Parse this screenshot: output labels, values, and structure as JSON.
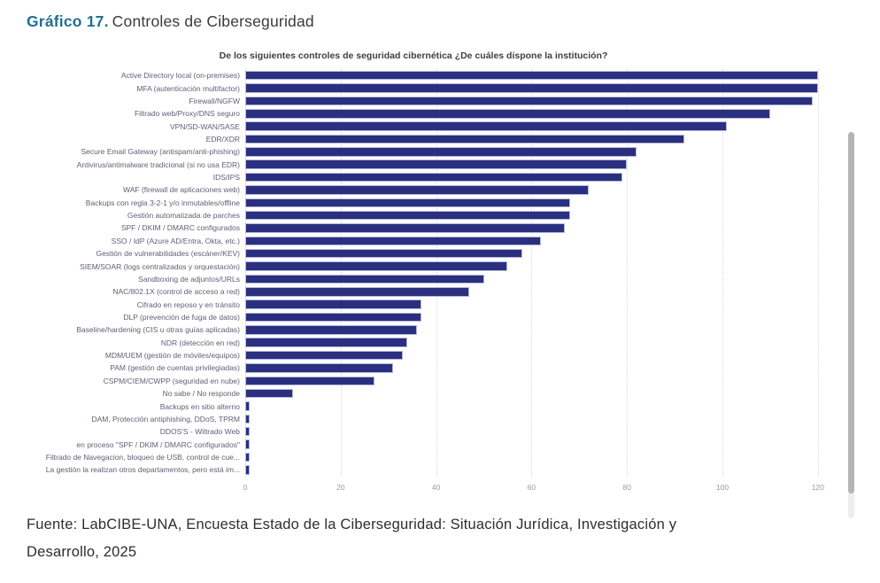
{
  "page": {
    "title_prefix": "Gráfico 17.",
    "title_text": "Controles de Ciberseguridad",
    "footer_lines": [
      "Fuente: LabCIBE-UNA, Encuesta Estado de la Ciberseguridad: Situación Jurídica, Investigación y",
      "Desarrollo, 2025"
    ]
  },
  "colors": {
    "title_accent": "#1f7092",
    "bar": "#2b2f80",
    "bar_border": "#b4bad8",
    "grid": "#d8d8d8",
    "tick_label": "#9a9a9a",
    "category_label": "#5f5f75",
    "scrollbar_thumb": "#b5b5b5",
    "scrollbar_track": "#ededed"
  },
  "chart_data": {
    "type": "bar",
    "orientation": "horizontal",
    "title": "De los siguientes controles de seguridad cibernética ¿De cuáles dispone la institución?",
    "categories": [
      "Active Directory local (on-premises)",
      "MFA (autenticación multifactor)",
      "Firewall/NGFW",
      "Filtrado web/Proxy/DNS seguro",
      "VPN/SD-WAN/SASE",
      "EDR/XDR",
      "Secure Email Gateway (antispam/anti-phishing)",
      "Antivirus/antimalware tradicional (si no usa EDR)",
      "IDS/IPS",
      "WAF (firewall de aplicaciones web)",
      "Backups con regla 3-2-1 y/o inmutables/offline",
      "Gestión automatizada de parches",
      "SPF / DKIM / DMARC configurados",
      "SSO / IdP (Azure AD/Entra, Okta, etc.)",
      "Gestión de vulnerabilidades (escáner/KEV)",
      "SIEM/SOAR (logs centralizados y orquestación)",
      "Sandboxing de adjuntos/URLs",
      "NAC/802.1X (control de acceso a red)",
      "Cifrado en reposo y en tránsito",
      "DLP (prevención de fuga de datos)",
      "Baseline/hardening (CIS u otras guías aplicadas)",
      "NDR (detección en red)",
      "MDM/UEM (gestión de móviles/equipos)",
      "PAM (gestión de cuentas privilegiadas)",
      "CSPM/CIEM/CWPP (seguridad en nube)",
      "No sabe / No responde",
      "Backups en sitio alterno",
      "DAM, Protección antiphishing, DDoS, TPRM",
      "DDOS'S - Wiltrado Web",
      "en proceso \"SPF / DKIM / DMARC configurados\"",
      "Filtrado de Navegacion, bloqueo de USB, control de cue...",
      "La gestión la realizan otros departamentos, pero está im..."
    ],
    "values": [
      120,
      120,
      119,
      110,
      101,
      92,
      82,
      80,
      79,
      72,
      68,
      68,
      67,
      62,
      58,
      55,
      50,
      47,
      37,
      37,
      36,
      34,
      33,
      31,
      27,
      10,
      1,
      1,
      1,
      1,
      1,
      1
    ],
    "xlabel": "",
    "ylabel": "",
    "xlim": [
      0,
      120
    ],
    "xticks": [
      0,
      20,
      40,
      60,
      80,
      100,
      120
    ],
    "grid": "vertical-dotted",
    "legend": "none"
  }
}
